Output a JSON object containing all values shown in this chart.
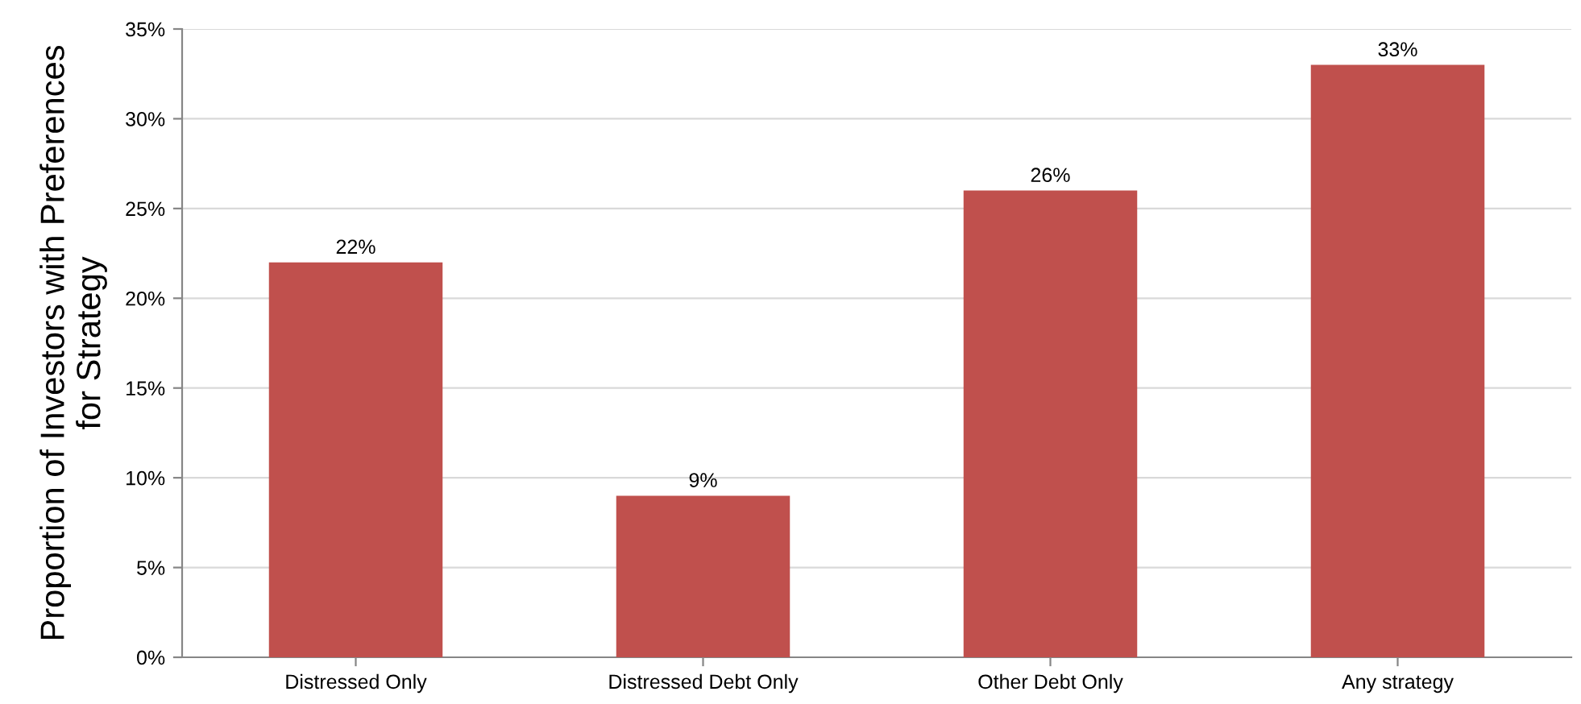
{
  "chart_data": {
    "type": "bar",
    "ylabel": "Proportion of Investors with Preferences\nfor Strategy",
    "categories": [
      "Distressed Only",
      "Distressed Debt Only",
      "Other Debt Only",
      "Any strategy"
    ],
    "values": [
      22,
      9,
      26,
      33
    ],
    "value_labels": [
      "22%",
      "9%",
      "26%",
      "33%"
    ],
    "color": "#c0504d",
    "ylim": [
      0,
      35
    ],
    "yticks": [
      {
        "value": 0,
        "label": "0%"
      },
      {
        "value": 5,
        "label": "5%"
      },
      {
        "value": 10,
        "label": "10%"
      },
      {
        "value": 15,
        "label": "15%"
      },
      {
        "value": 20,
        "label": "20%"
      },
      {
        "value": 25,
        "label": "25%"
      },
      {
        "value": 30,
        "label": "30%"
      },
      {
        "value": 35,
        "label": "35%"
      }
    ],
    "grid": "y"
  }
}
